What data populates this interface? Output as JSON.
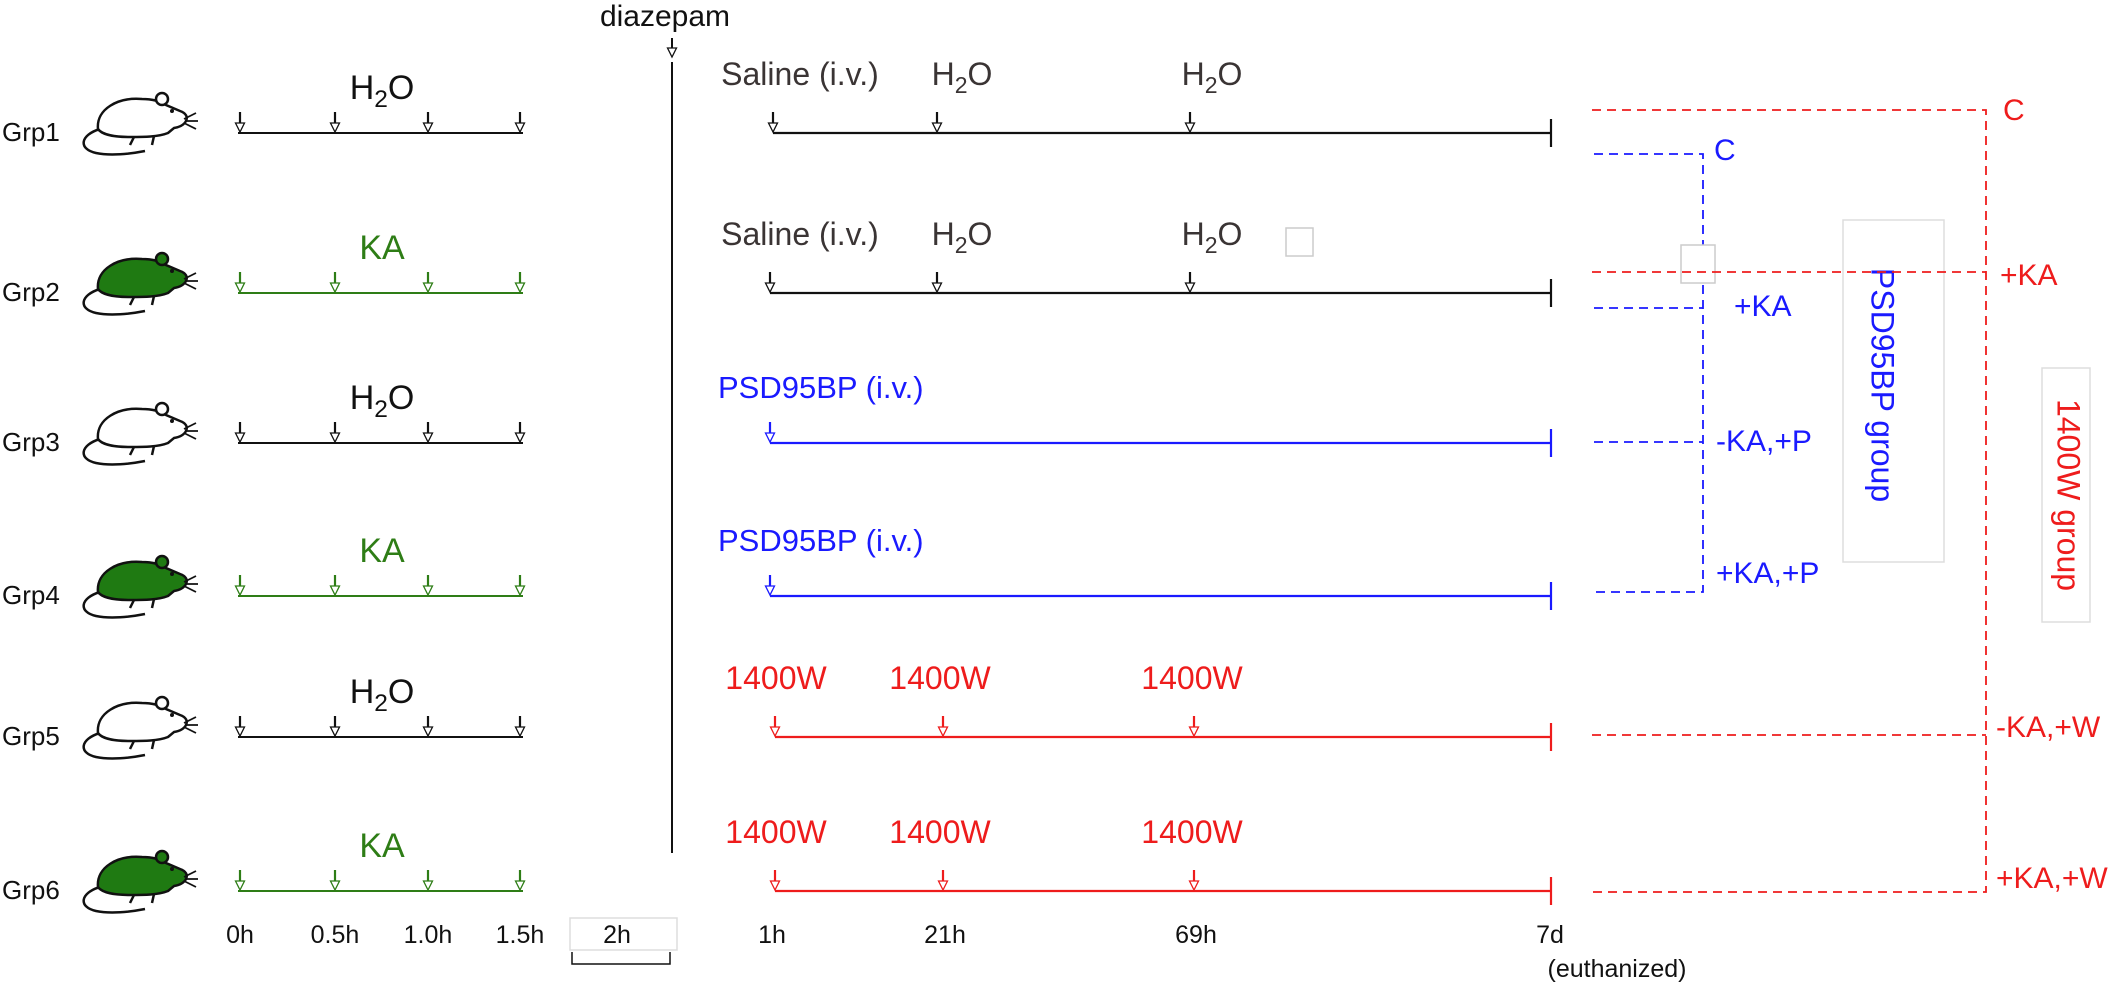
{
  "colors": {
    "black": "#111111",
    "green": "#2e7d16",
    "blue": "#1a1aff",
    "red": "#ee1c1c",
    "mouse_green": "#1f7a12"
  },
  "diazepam": "diazepam",
  "groups": [
    {
      "label": "Grp1",
      "pretreatment": "H2O",
      "ka": false
    },
    {
      "label": "Grp2",
      "pretreatment": "KA",
      "ka": true
    },
    {
      "label": "Grp3",
      "pretreatment": "H2O",
      "ka": false
    },
    {
      "label": "Grp4",
      "pretreatment": "KA",
      "ka": true
    },
    {
      "label": "Grp5",
      "pretreatment": "H2O",
      "ka": false
    },
    {
      "label": "Grp6",
      "pretreatment": "KA",
      "ka": true
    }
  ],
  "treatments": [
    {
      "line": "black",
      "labels": [
        "Saline (i.v.)",
        "H2O",
        "H2O"
      ]
    },
    {
      "line": "black",
      "labels": [
        "Saline (i.v.)",
        "H2O",
        "H2O"
      ]
    },
    {
      "line": "blue",
      "labels": [
        "PSD95BP (i.v.)"
      ]
    },
    {
      "line": "blue",
      "labels": [
        "PSD95BP (i.v.)"
      ]
    },
    {
      "line": "red",
      "labels": [
        "1400W",
        "1400W",
        "1400W"
      ]
    },
    {
      "line": "red",
      "labels": [
        "1400W",
        "1400W",
        "1400W"
      ]
    }
  ],
  "time_labels": [
    "0h",
    "0.5h",
    "1.0h",
    "1.5h",
    "2h",
    "1h",
    "21h",
    "69h",
    "7d",
    "(euthanized)"
  ],
  "blue_bracket": {
    "labels": [
      "C",
      "+KA",
      "-KA,+P",
      "+KA,+P"
    ],
    "group_label": "PSD95BP group"
  },
  "red_bracket": {
    "labels": [
      "C",
      "+KA",
      "-KA,+W",
      "+KA,+W"
    ],
    "group_label": "1400W group"
  }
}
